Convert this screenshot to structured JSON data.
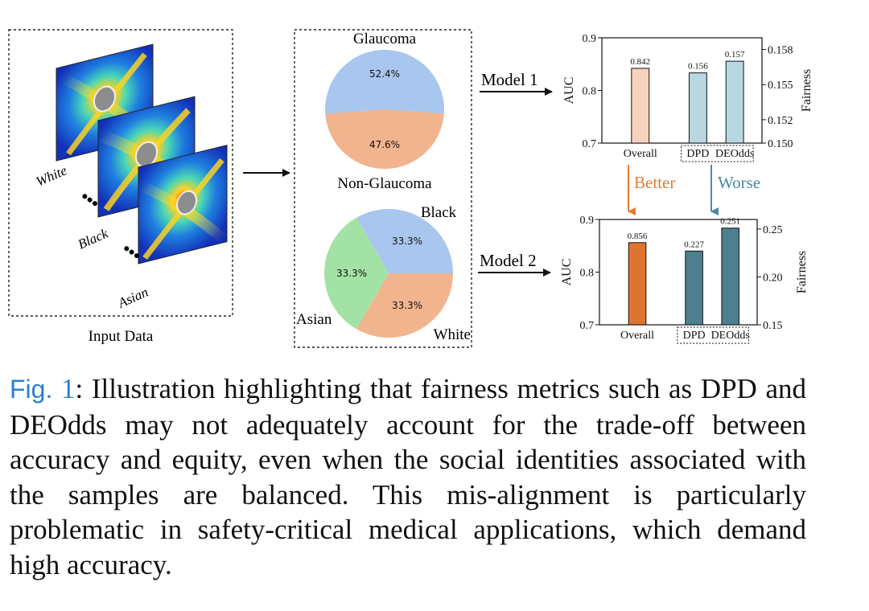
{
  "input_panel": {
    "label": "Input Data",
    "groups": [
      "White",
      "Black",
      "Asian"
    ],
    "ellipsis": "•••"
  },
  "pies": {
    "glaucoma": {
      "top_label": "Glaucoma",
      "bottom_label": "Non-Glaucoma",
      "slices": [
        {
          "name": "Glaucoma",
          "value": 52.4,
          "label": "52.4%",
          "color": "#a9c6ee"
        },
        {
          "name": "Non-Glaucoma",
          "value": 47.6,
          "label": "47.6%",
          "color": "#f2b48e"
        }
      ]
    },
    "race": {
      "labels": {
        "black": "Black",
        "asian": "Asian",
        "white": "White"
      },
      "slices": [
        {
          "name": "Black",
          "value": 33.3,
          "label": "33.3%",
          "color": "#a9c6ee"
        },
        {
          "name": "Asian",
          "value": 33.3,
          "label": "33.3%",
          "color": "#f2b48e"
        },
        {
          "name": "White",
          "value": 33.3,
          "label": "33.3%",
          "color": "#a3e2a5"
        }
      ]
    }
  },
  "arrows": {
    "model1": "Model 1",
    "model2": "Model 2",
    "better": "Better",
    "worse": "Worse",
    "better_color": "#e07b35",
    "worse_color": "#4a8aa0"
  },
  "chart_data": [
    {
      "type": "bar",
      "title": "Model 1",
      "categories": [
        "Overall",
        "DPD",
        "DEOdds"
      ],
      "left_axis": {
        "label": "AUC",
        "ylim": [
          0.7,
          0.9
        ],
        "ticks": [
          "0.7",
          "0.8",
          "0.9"
        ]
      },
      "right_axis": {
        "label": "Fairness",
        "ylim": [
          0.15,
          0.159
        ],
        "ticks": [
          "0.150",
          "0.152",
          "0.155",
          "0.158"
        ]
      },
      "values": [
        0.842,
        0.156,
        0.157
      ],
      "value_labels": [
        "0.842",
        "0.156",
        "0.157"
      ],
      "axis_of_bar": [
        "left",
        "right",
        "right"
      ],
      "colors": [
        "#f7d3bd",
        "#b7d8e1",
        "#b7d8e1"
      ]
    },
    {
      "type": "bar",
      "title": "Model 2",
      "categories": [
        "Overall",
        "DPD",
        "DEOdds"
      ],
      "left_axis": {
        "label": "AUC",
        "ylim": [
          0.7,
          0.9
        ],
        "ticks": [
          "0.7",
          "0.8",
          "0.9"
        ]
      },
      "right_axis": {
        "label": "Fairness",
        "ylim": [
          0.15,
          0.26
        ],
        "ticks": [
          "0.15",
          "0.20",
          "0.25"
        ]
      },
      "values": [
        0.856,
        0.227,
        0.251
      ],
      "value_labels": [
        "0.856",
        "0.227",
        "0.251"
      ],
      "axis_of_bar": [
        "left",
        "right",
        "right"
      ],
      "colors": [
        "#dd7430",
        "#4c7f8f",
        "#4c7f8f"
      ]
    }
  ],
  "caption": {
    "fig_label": "Fig.",
    "fig_number": "1",
    "text": ": Illustration highlighting that fairness metrics such as DPD and DEOdds may not adequately account for the trade-off between accuracy and equity, even when the social identities associated with the samples are balanced. This mis-alignment is particularly problematic in safety-critical medical applications, which demand high accuracy."
  }
}
